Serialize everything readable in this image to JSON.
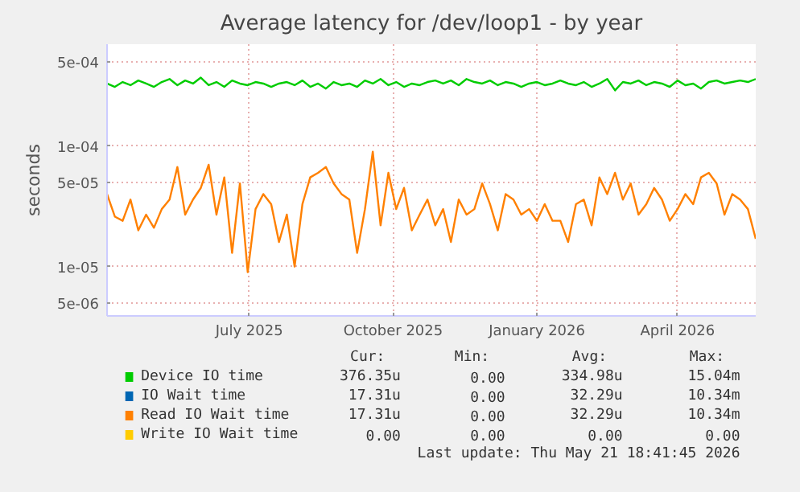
{
  "chart_data": {
    "type": "line",
    "title": "Average latency for /dev/loop1 - by year",
    "ylabel": "seconds",
    "log": true,
    "grid": true,
    "legend": "bottom",
    "xlim": [
      "2025-04-01",
      "2026-05-21"
    ],
    "xticks": [
      {
        "value": "2025-07-01",
        "label": "July 2025"
      },
      {
        "value": "2025-10-01",
        "label": "October 2025"
      },
      {
        "value": "2026-01-01",
        "label": "January 2026"
      },
      {
        "value": "2026-04-01",
        "label": "April 2026"
      }
    ],
    "ylim": [
      3.9e-06,
      0.0007
    ],
    "yticks": [
      {
        "value": 5e-06,
        "label": "5e-06"
      },
      {
        "value": 1e-05,
        "label": "1e-05"
      },
      {
        "value": 5e-05,
        "label": "5e-05"
      },
      {
        "value": 0.0001,
        "label": "1e-04"
      },
      {
        "value": 0.0005,
        "label": "5e-04"
      }
    ],
    "x": [
      "2025-04-01",
      "2025-04-06",
      "2025-04-11",
      "2025-04-16",
      "2025-04-21",
      "2025-04-26",
      "2025-05-01",
      "2025-05-06",
      "2025-05-11",
      "2025-05-16",
      "2025-05-21",
      "2025-05-26",
      "2025-05-31",
      "2025-06-05",
      "2025-06-10",
      "2025-06-15",
      "2025-06-20",
      "2025-06-25",
      "2025-06-30",
      "2025-07-05",
      "2025-07-10",
      "2025-07-15",
      "2025-07-20",
      "2025-07-25",
      "2025-07-30",
      "2025-08-04",
      "2025-08-09",
      "2025-08-14",
      "2025-08-19",
      "2025-08-24",
      "2025-08-29",
      "2025-09-03",
      "2025-09-08",
      "2025-09-13",
      "2025-09-18",
      "2025-09-23",
      "2025-09-28",
      "2025-10-03",
      "2025-10-08",
      "2025-10-13",
      "2025-10-18",
      "2025-10-23",
      "2025-10-28",
      "2025-11-02",
      "2025-11-07",
      "2025-11-12",
      "2025-11-17",
      "2025-11-22",
      "2025-11-27",
      "2025-12-02",
      "2025-12-07",
      "2025-12-12",
      "2025-12-17",
      "2025-12-22",
      "2025-12-27",
      "2026-01-01",
      "2026-01-06",
      "2026-01-11",
      "2026-01-16",
      "2026-01-21",
      "2026-01-26",
      "2026-01-31",
      "2026-02-05",
      "2026-02-10",
      "2026-02-15",
      "2026-02-20",
      "2026-02-25",
      "2026-03-02",
      "2026-03-07",
      "2026-03-12",
      "2026-03-17",
      "2026-03-22",
      "2026-03-27",
      "2026-04-01",
      "2026-04-06",
      "2026-04-11",
      "2026-04-16",
      "2026-04-21",
      "2026-04-26",
      "2026-05-01",
      "2026-05-06",
      "2026-05-11",
      "2026-05-16",
      "2026-05-21"
    ],
    "series": [
      {
        "name": "Device IO time",
        "color": "#00cc00",
        "values": [
          0.00033,
          0.00031,
          0.00034,
          0.00032,
          0.00035,
          0.00033,
          0.00031,
          0.00034,
          0.00036,
          0.00032,
          0.00035,
          0.00033,
          0.00037,
          0.00032,
          0.00034,
          0.00031,
          0.00035,
          0.00033,
          0.00032,
          0.00034,
          0.00033,
          0.00031,
          0.00033,
          0.00034,
          0.00032,
          0.00035,
          0.00031,
          0.00033,
          0.0003,
          0.00034,
          0.00032,
          0.00033,
          0.00031,
          0.00035,
          0.00033,
          0.00036,
          0.00032,
          0.00034,
          0.00031,
          0.00033,
          0.00032,
          0.00034,
          0.00035,
          0.00033,
          0.00035,
          0.00032,
          0.00036,
          0.00034,
          0.00033,
          0.00035,
          0.00032,
          0.00034,
          0.00033,
          0.00031,
          0.00033,
          0.00034,
          0.00032,
          0.00033,
          0.00035,
          0.00033,
          0.00032,
          0.00034,
          0.00031,
          0.00033,
          0.00036,
          0.00029,
          0.00034,
          0.00033,
          0.00035,
          0.00032,
          0.00034,
          0.00033,
          0.00031,
          0.00035,
          0.00032,
          0.00033,
          0.0003,
          0.00034,
          0.00035,
          0.00033,
          0.00034,
          0.00035,
          0.00034,
          0.00036
        ]
      },
      {
        "name": "IO Wait time",
        "color": "#0066b3",
        "values": [
          null,
          null,
          null,
          null,
          null,
          null,
          null,
          null,
          null,
          null,
          null,
          null,
          null,
          null,
          null,
          null,
          null,
          null,
          null,
          null,
          null,
          null,
          null,
          null,
          null,
          null,
          null,
          null,
          null,
          null,
          null,
          null,
          null,
          null,
          null,
          null,
          null,
          null,
          null,
          null,
          null,
          null,
          null,
          null,
          null,
          null,
          null,
          null,
          null,
          null,
          null,
          null,
          null,
          null,
          null,
          null,
          null,
          null,
          null,
          null,
          null,
          null,
          null,
          null,
          null,
          null,
          null,
          null,
          null,
          null,
          null,
          null,
          null,
          null,
          null,
          null,
          null,
          null,
          null,
          null,
          null,
          null,
          null,
          null
        ]
      },
      {
        "name": "Read IO Wait time",
        "color": "#ff8000",
        "values": [
          4e-05,
          2.6e-05,
          2.4e-05,
          3.6e-05,
          2e-05,
          2.7e-05,
          2.1e-05,
          3e-05,
          3.6e-05,
          6.7e-05,
          2.7e-05,
          3.6e-05,
          4.5e-05,
          7e-05,
          2.7e-05,
          5.5e-05,
          1.3e-05,
          4.9e-05,
          9e-06,
          3e-05,
          4e-05,
          3.3e-05,
          1.6e-05,
          2.7e-05,
          1e-05,
          3.3e-05,
          5.5e-05,
          6e-05,
          6.7e-05,
          4.9e-05,
          4e-05,
          3.6e-05,
          1.3e-05,
          3e-05,
          9e-05,
          2.2e-05,
          6e-05,
          3e-05,
          4.5e-05,
          2e-05,
          2.7e-05,
          3.6e-05,
          2.2e-05,
          3e-05,
          1.6e-05,
          3.6e-05,
          2.7e-05,
          3e-05,
          4.9e-05,
          3.3e-05,
          2e-05,
          4e-05,
          3.6e-05,
          2.7e-05,
          3e-05,
          2.4e-05,
          3.3e-05,
          2.4e-05,
          2.4e-05,
          1.6e-05,
          3.3e-05,
          3.6e-05,
          2.2e-05,
          5.5e-05,
          4e-05,
          6e-05,
          3.6e-05,
          4.9e-05,
          2.7e-05,
          3.3e-05,
          4.5e-05,
          3.6e-05,
          2.4e-05,
          3e-05,
          4e-05,
          3.3e-05,
          5.5e-05,
          6e-05,
          4.9e-05,
          2.7e-05,
          4e-05,
          3.6e-05,
          3e-05,
          1.7e-05
        ]
      },
      {
        "name": "Write IO Wait time",
        "color": "#ffcc00",
        "values": [
          null,
          null,
          null,
          null,
          null,
          null,
          null,
          null,
          null,
          null,
          null,
          null,
          null,
          null,
          null,
          null,
          null,
          null,
          null,
          null,
          null,
          null,
          null,
          null,
          null,
          null,
          null,
          null,
          null,
          null,
          null,
          null,
          null,
          null,
          null,
          null,
          null,
          null,
          null,
          null,
          null,
          null,
          null,
          null,
          null,
          null,
          null,
          null,
          null,
          null,
          null,
          null,
          null,
          null,
          null,
          null,
          null,
          null,
          null,
          null,
          null,
          null,
          null,
          null,
          null,
          null,
          null,
          null,
          null,
          null,
          null,
          null,
          null,
          null,
          null,
          null,
          null,
          null,
          null,
          null,
          null,
          null,
          null,
          null
        ]
      }
    ],
    "annotations": [
      "Cur:",
      "Min:",
      "Avg:",
      "Max:",
      "376.35u",
      "0.00",
      "334.98u",
      "15.04m",
      "17.31u",
      "0.00",
      "32.29u",
      "10.34m",
      "17.31u",
      "0.00",
      "32.29u",
      "10.34m",
      "0.00",
      "0.00",
      "0.00",
      "0.00",
      "Last update: Thu May 21 18:41:45 2026"
    ]
  }
}
